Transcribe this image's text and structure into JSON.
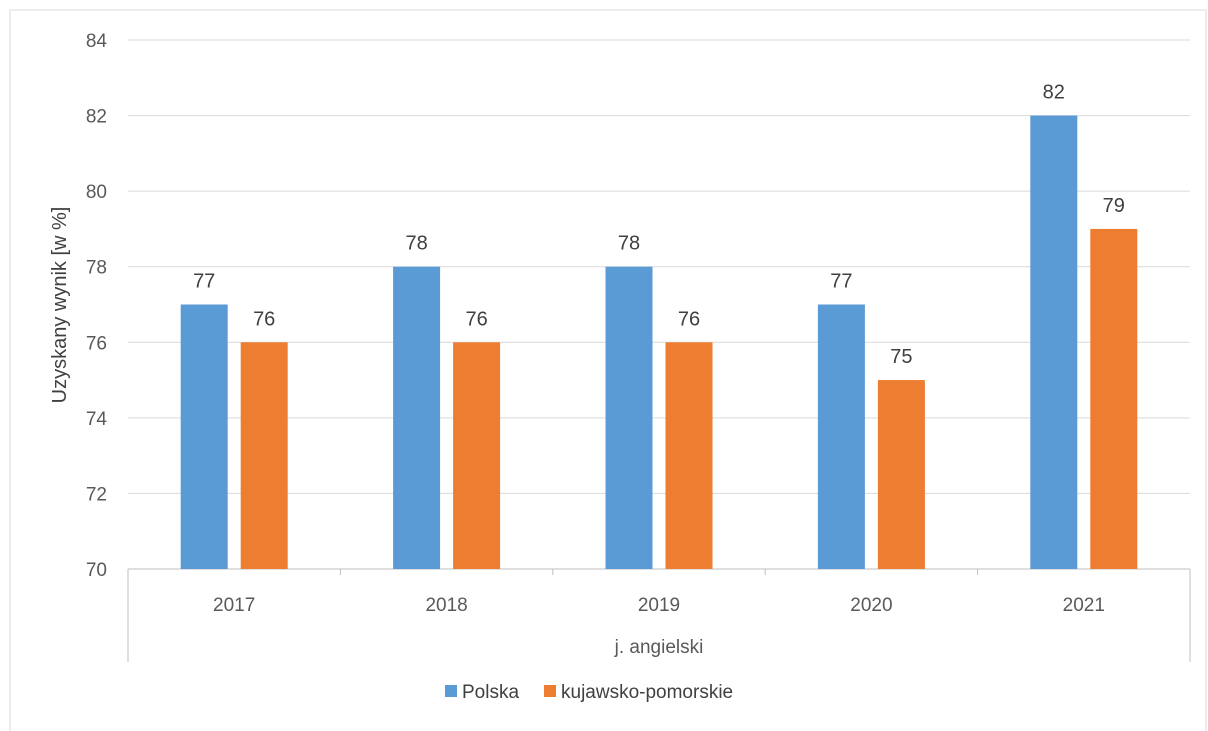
{
  "chart_data": {
    "type": "bar",
    "title": "",
    "ylabel": "Uzyskany wynik [w %]",
    "group_label": "j. angielski",
    "categories": [
      "2017",
      "2018",
      "2019",
      "2020",
      "2021"
    ],
    "ylim": [
      70,
      84
    ],
    "yticks": [
      70,
      72,
      74,
      76,
      78,
      80,
      82,
      84
    ],
    "grid": true,
    "legend_position": "bottom",
    "series": [
      {
        "name": "Polska",
        "color": "#5B9BD5",
        "values": [
          77,
          78,
          78,
          77,
          82
        ]
      },
      {
        "name": "kujawsko-pomorskie",
        "color": "#ED7D31",
        "values": [
          76,
          76,
          76,
          75,
          79
        ]
      }
    ]
  }
}
